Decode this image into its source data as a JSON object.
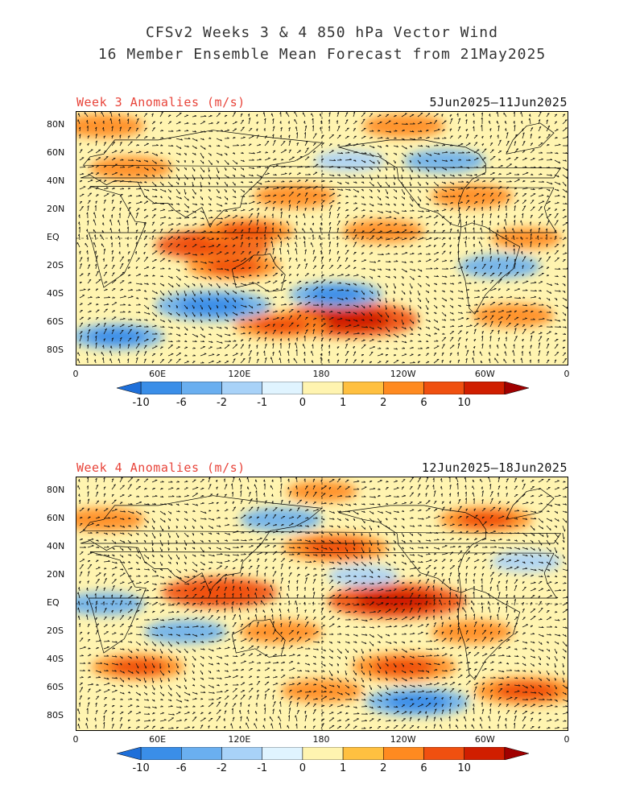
{
  "title_line1": "CFSv2 Weeks 3 & 4 850 hPa Vector Wind",
  "title_line2": "16 Member Ensemble Mean Forecast from 21May2025",
  "lat_labels": [
    "80N",
    "60N",
    "40N",
    "20N",
    "EQ",
    "20S",
    "40S",
    "60S",
    "80S"
  ],
  "lat_values": [
    80,
    60,
    40,
    20,
    0,
    -20,
    -40,
    -60,
    -80
  ],
  "lon_labels": [
    "0",
    "60E",
    "120E",
    "180",
    "120W",
    "60W",
    "0"
  ],
  "colorbar": {
    "labels": [
      "-10",
      "-6",
      "-2",
      "-1",
      "0",
      "1",
      "2",
      "6",
      "10"
    ],
    "colors": [
      "#1e6fd9",
      "#3a8ee8",
      "#6aaff0",
      "#a8d2f8",
      "#e0f4ff",
      "#fff4b0",
      "#ffc040",
      "#ff8a20",
      "#f05010",
      "#d01e00",
      "#a00000"
    ]
  },
  "panels": [
    {
      "label": "Week 3 Anomalies (m/s)",
      "dates": "5Jun2025–11Jun2025",
      "chart_data": {
        "type": "heatmap",
        "variable": "850 hPa vector wind anomaly",
        "units": "m/s",
        "lat_range": [
          -90,
          90
        ],
        "lon_range": [
          0,
          360
        ],
        "features": [
          {
            "lon": 100,
            "lat": -5,
            "value": 6
          },
          {
            "lon": 125,
            "lat": 5,
            "value": 4
          },
          {
            "lon": 115,
            "lat": -20,
            "value": 4
          },
          {
            "lon": 200,
            "lat": -58,
            "value": 8
          },
          {
            "lon": 150,
            "lat": -62,
            "value": 4
          },
          {
            "lon": 190,
            "lat": -40,
            "value": -4
          },
          {
            "lon": 100,
            "lat": -48,
            "value": -6
          },
          {
            "lon": 30,
            "lat": -70,
            "value": -4
          },
          {
            "lon": 160,
            "lat": 30,
            "value": 3
          },
          {
            "lon": 290,
            "lat": 30,
            "value": 3
          },
          {
            "lon": 225,
            "lat": 5,
            "value": 3
          },
          {
            "lon": 40,
            "lat": 50,
            "value": 3
          },
          {
            "lon": 320,
            "lat": -55,
            "value": 3
          },
          {
            "lon": 310,
            "lat": -20,
            "value": -3
          },
          {
            "lon": 200,
            "lat": 55,
            "value": -2
          },
          {
            "lon": 270,
            "lat": 55,
            "value": -3
          },
          {
            "lon": 20,
            "lat": 80,
            "value": 3
          },
          {
            "lon": 240,
            "lat": 80,
            "value": 3
          },
          {
            "lon": 330,
            "lat": 0,
            "value": 2
          }
        ]
      }
    },
    {
      "label": "Week 4 Anomalies (m/s)",
      "dates": "12Jun2025–18Jun2025",
      "chart_data": {
        "type": "heatmap",
        "variable": "850 hPa vector wind anomaly",
        "units": "m/s",
        "lat_range": [
          -90,
          90
        ],
        "lon_range": [
          0,
          360
        ],
        "features": [
          {
            "lon": 105,
            "lat": 8,
            "value": 6
          },
          {
            "lon": 235,
            "lat": 2,
            "value": 8
          },
          {
            "lon": 190,
            "lat": 40,
            "value": 5
          },
          {
            "lon": 45,
            "lat": -45,
            "value": 4
          },
          {
            "lon": 240,
            "lat": -45,
            "value": 5
          },
          {
            "lon": 180,
            "lat": -62,
            "value": 3
          },
          {
            "lon": 330,
            "lat": -62,
            "value": 5
          },
          {
            "lon": 300,
            "lat": 60,
            "value": 4
          },
          {
            "lon": 20,
            "lat": 60,
            "value": 3
          },
          {
            "lon": 150,
            "lat": -20,
            "value": 3
          },
          {
            "lon": 180,
            "lat": 80,
            "value": 2
          },
          {
            "lon": 250,
            "lat": -70,
            "value": -5
          },
          {
            "lon": 150,
            "lat": 60,
            "value": -3
          },
          {
            "lon": 20,
            "lat": 0,
            "value": -3
          },
          {
            "lon": 330,
            "lat": 30,
            "value": -2
          },
          {
            "lon": 80,
            "lat": -20,
            "value": -3
          },
          {
            "lon": 210,
            "lat": 20,
            "value": -2
          },
          {
            "lon": 290,
            "lat": -20,
            "value": 3
          }
        ]
      }
    }
  ]
}
